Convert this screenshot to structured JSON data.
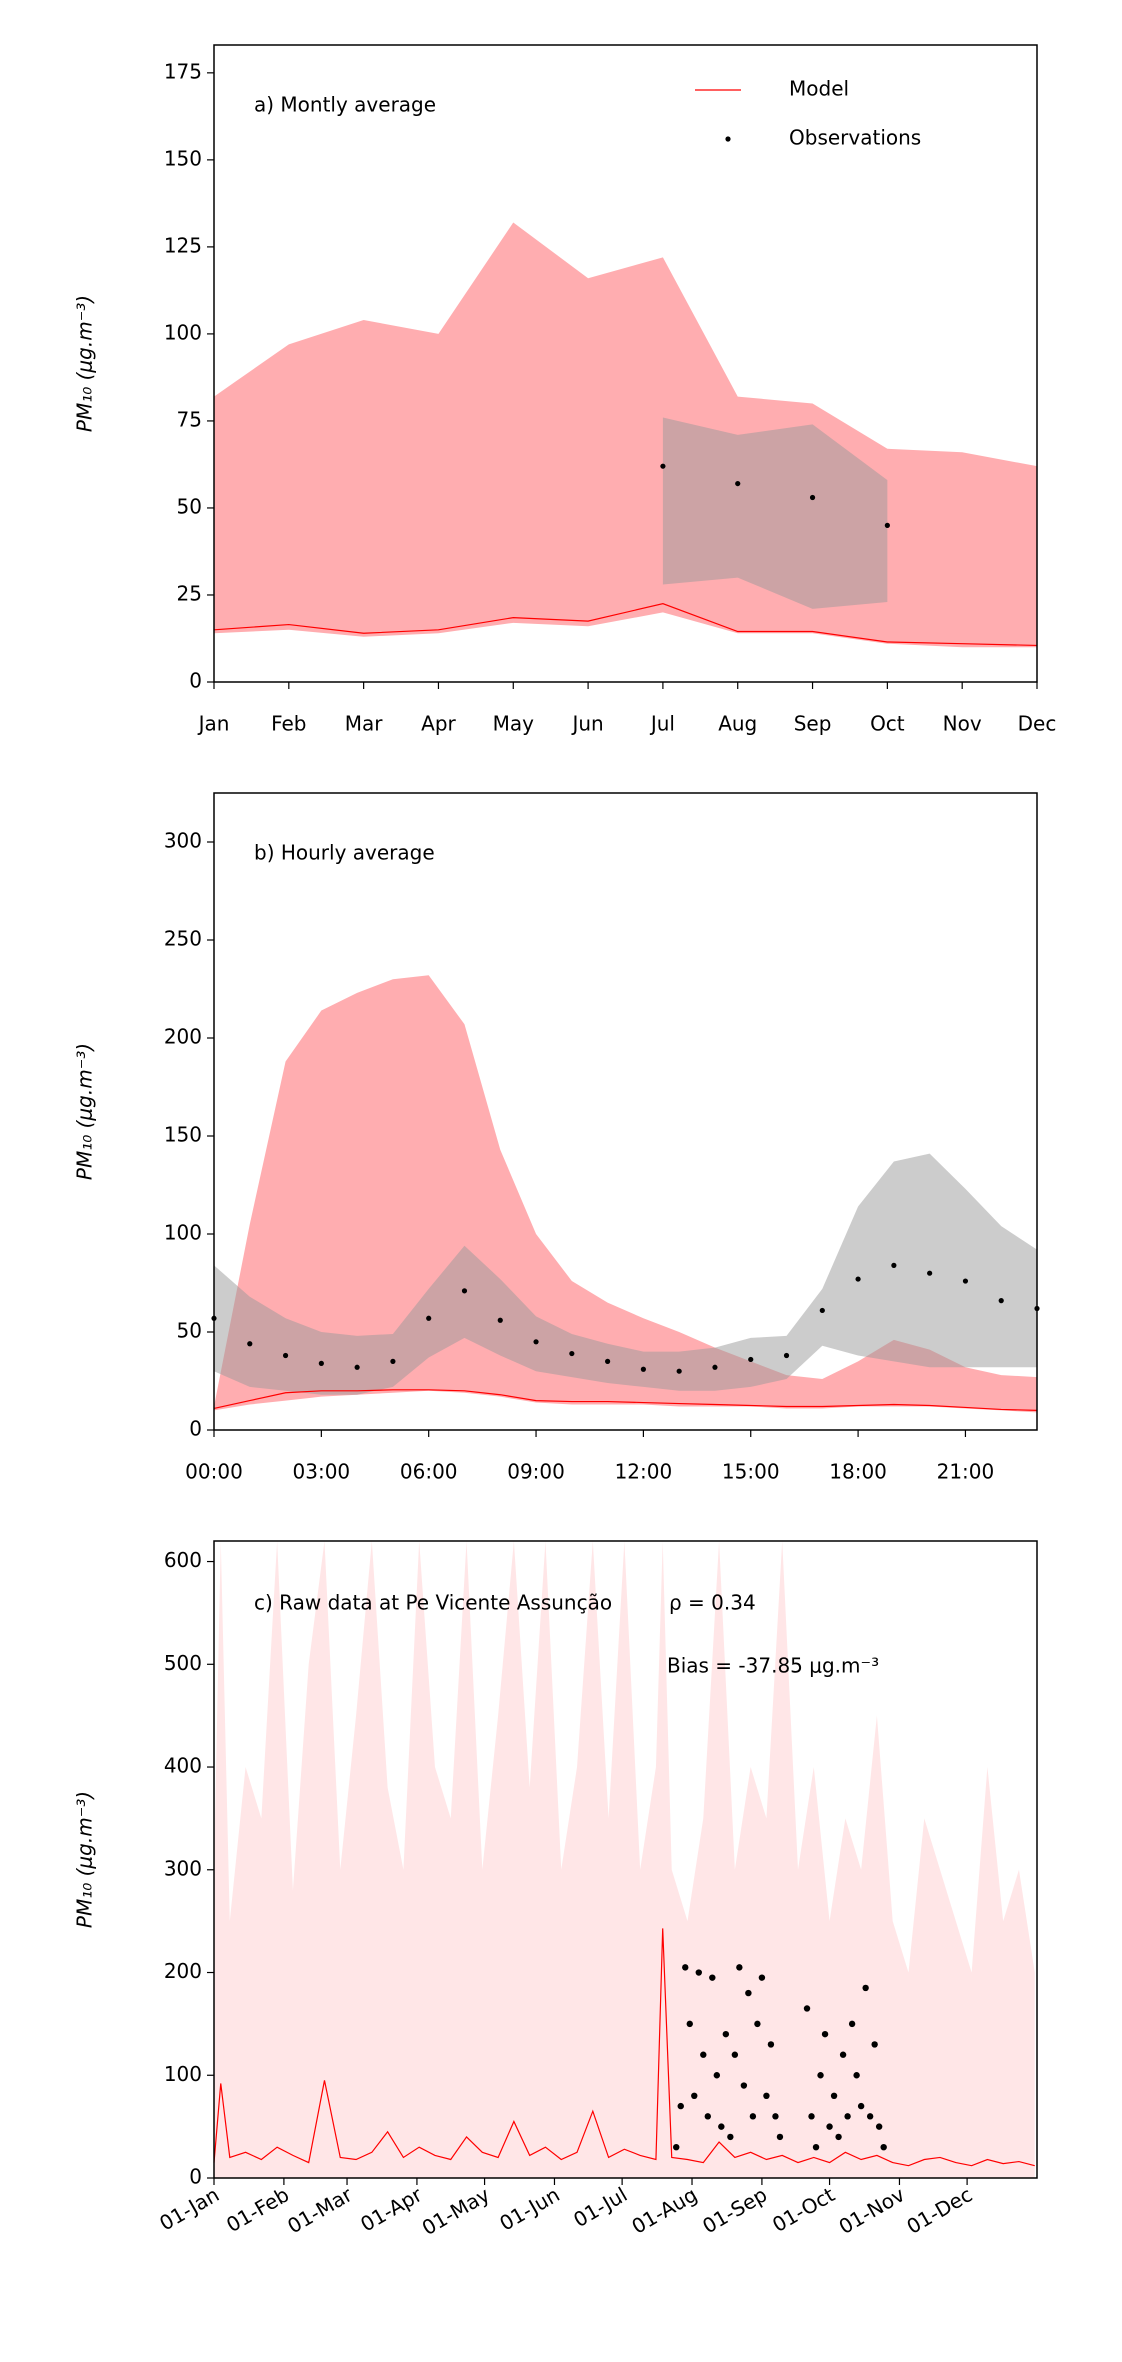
{
  "chart_data": [
    {
      "type": "line",
      "ylabel": "PM₁₀ (μg.m⁻³)",
      "annotations": [
        "a) Montly average"
      ],
      "legend": "upper right",
      "categories": [
        "Jan",
        "Feb",
        "Mar",
        "Apr",
        "May",
        "Jun",
        "Jul",
        "Aug",
        "Sep",
        "Oct",
        "Nov",
        "Dec"
      ],
      "ylim": [
        0,
        183
      ],
      "yticks": [
        0,
        25,
        50,
        75,
        100,
        125,
        150,
        175
      ],
      "bands": [
        {
          "color": "#ff7b80",
          "upper": [
            82,
            97,
            104,
            100,
            132,
            116,
            122,
            82,
            80,
            67,
            66,
            62
          ],
          "lower": [
            14,
            15,
            13,
            14,
            17,
            16,
            20,
            14,
            14,
            11,
            10,
            10
          ]
        },
        {
          "color": "#999999",
          "upper": [
            null,
            null,
            null,
            null,
            null,
            null,
            76,
            71,
            74,
            58,
            null,
            null
          ],
          "lower": [
            null,
            null,
            null,
            null,
            null,
            null,
            28,
            30,
            21,
            23,
            null,
            null
          ]
        }
      ],
      "series": [
        {
          "name": "Model",
          "color": "#ff0000",
          "style": "line",
          "values": [
            15,
            16.5,
            14,
            15,
            18.5,
            17.5,
            22.5,
            14.5,
            14.5,
            11.5,
            11,
            10.5
          ]
        },
        {
          "name": "Observations",
          "color": "#000000",
          "style": "points",
          "values": [
            null,
            null,
            null,
            null,
            null,
            null,
            62,
            57,
            53,
            45,
            null,
            null
          ]
        }
      ]
    },
    {
      "type": "line",
      "ylabel": "PM₁₀ (μg.m⁻³)",
      "annotations": [
        "b) Hourly average"
      ],
      "x": [
        0,
        1,
        2,
        3,
        4,
        5,
        6,
        7,
        8,
        9,
        10,
        11,
        12,
        13,
        14,
        15,
        16,
        17,
        18,
        19,
        20,
        21,
        22,
        23
      ],
      "xlim": [
        0,
        23
      ],
      "xticks": [
        {
          "value": 0,
          "label": "00:00"
        },
        {
          "value": 3,
          "label": "03:00"
        },
        {
          "value": 6,
          "label": "06:00"
        },
        {
          "value": 9,
          "label": "09:00"
        },
        {
          "value": 12,
          "label": "12:00"
        },
        {
          "value": 15,
          "label": "15:00"
        },
        {
          "value": 18,
          "label": "18:00"
        },
        {
          "value": 21,
          "label": "21:00"
        }
      ],
      "ylim": [
        0,
        325
      ],
      "yticks": [
        0,
        50,
        100,
        150,
        200,
        250,
        300
      ],
      "bands": [
        {
          "color": "#ff7b80",
          "upper": [
            12,
            105,
            188,
            214,
            223,
            230,
            232,
            207,
            143,
            100,
            76,
            65,
            57,
            50,
            42,
            35,
            28,
            26,
            35,
            46,
            41,
            32,
            28,
            27
          ],
          "lower": [
            10,
            13,
            15,
            17,
            18,
            19,
            20,
            19,
            17,
            14,
            13,
            13,
            13,
            12,
            12,
            12,
            11,
            11,
            12,
            12,
            12,
            11,
            10,
            9
          ]
        },
        {
          "color": "#999999",
          "upper": [
            84,
            68,
            57,
            50,
            48,
            49,
            72,
            94,
            77,
            58,
            49,
            44,
            40,
            40,
            42,
            47,
            48,
            72,
            114,
            137,
            141,
            123,
            104,
            92
          ],
          "lower": [
            30,
            22,
            20,
            18,
            18,
            22,
            37,
            47,
            38,
            30,
            27,
            24,
            22,
            20,
            20,
            22,
            26,
            43,
            38,
            35,
            32,
            32,
            32,
            32
          ]
        }
      ],
      "series": [
        {
          "name": "Model",
          "color": "#ff0000",
          "style": "line",
          "values": [
            11,
            15,
            19,
            20,
            20,
            20.5,
            20.5,
            20,
            18,
            15,
            14.5,
            14.5,
            14,
            13.5,
            13,
            12.5,
            12,
            12,
            12.5,
            13,
            12.5,
            11.5,
            10.5,
            10
          ]
        },
        {
          "name": "Observations",
          "color": "#000000",
          "style": "points",
          "values": [
            57,
            44,
            38,
            34,
            32,
            35,
            57,
            71,
            56,
            45,
            39,
            35,
            31,
            30,
            32,
            36,
            38,
            61,
            77,
            84,
            80,
            76,
            66,
            62
          ]
        }
      ]
    },
    {
      "type": "line",
      "ylabel": "PM₁₀ (μg.m⁻³)",
      "annotations": [
        "c) Raw data at  Pe Vicente Assunção",
        "ρ = 0.34",
        "Bias = -37.85 μg.m⁻³"
      ],
      "xlim": [
        0,
        365
      ],
      "xticks": [
        {
          "value": 0,
          "label": "01-Jan"
        },
        {
          "value": 31,
          "label": "01-Feb"
        },
        {
          "value": 59,
          "label": "01-Mar"
        },
        {
          "value": 90,
          "label": "01-Apr"
        },
        {
          "value": 120,
          "label": "01-May"
        },
        {
          "value": 151,
          "label": "01-Jun"
        },
        {
          "value": 181,
          "label": "01-Jul"
        },
        {
          "value": 212,
          "label": "01-Aug"
        },
        {
          "value": 243,
          "label": "01-Sep"
        },
        {
          "value": 273,
          "label": "01-Oct"
        },
        {
          "value": 304,
          "label": "01-Nov"
        },
        {
          "value": 334,
          "label": "01-Dec"
        }
      ],
      "ylim": [
        0,
        620
      ],
      "yticks": [
        0,
        100,
        200,
        300,
        400,
        500,
        600
      ],
      "bands": [
        {
          "color": "#ffd6d8",
          "x": [
            0,
            3,
            7,
            14,
            21,
            28,
            35,
            42,
            49,
            56,
            63,
            70,
            77,
            84,
            91,
            98,
            105,
            112,
            119,
            126,
            133,
            140,
            147,
            154,
            161,
            168,
            175,
            182,
            189,
            196,
            199,
            203,
            210,
            217,
            224,
            231,
            238,
            245,
            252,
            259,
            266,
            273,
            280,
            287,
            294,
            301,
            308,
            315,
            322,
            329,
            336,
            343,
            350,
            357,
            364
          ],
          "upper": [
            300,
            620,
            250,
            400,
            350,
            620,
            280,
            500,
            620,
            300,
            450,
            620,
            380,
            300,
            620,
            400,
            350,
            620,
            300,
            450,
            620,
            380,
            620,
            300,
            400,
            620,
            350,
            620,
            300,
            400,
            620,
            300,
            250,
            350,
            620,
            300,
            400,
            350,
            620,
            300,
            400,
            250,
            350,
            300,
            450,
            250,
            200,
            350,
            300,
            250,
            200,
            400,
            250,
            300,
            200
          ]
        }
      ],
      "series": [
        {
          "name": "Model",
          "color": "#ff0000",
          "style": "line",
          "x": [
            0,
            3,
            7,
            14,
            21,
            28,
            35,
            42,
            49,
            56,
            63,
            70,
            77,
            84,
            91,
            98,
            105,
            112,
            119,
            126,
            133,
            140,
            147,
            154,
            161,
            168,
            175,
            182,
            189,
            196,
            199,
            203,
            210,
            217,
            224,
            231,
            238,
            245,
            252,
            259,
            266,
            273,
            280,
            287,
            294,
            301,
            308,
            315,
            322,
            329,
            336,
            343,
            350,
            357,
            364
          ],
          "values": [
            15,
            92,
            20,
            25,
            18,
            30,
            22,
            15,
            95,
            20,
            18,
            25,
            45,
            20,
            30,
            22,
            18,
            40,
            25,
            20,
            55,
            22,
            30,
            18,
            25,
            65,
            20,
            28,
            22,
            18,
            243,
            20,
            18,
            15,
            35,
            20,
            25,
            18,
            22,
            15,
            20,
            15,
            25,
            18,
            22,
            15,
            12,
            18,
            20,
            15,
            12,
            18,
            14,
            16,
            12
          ]
        },
        {
          "name": "Observations",
          "color": "#000000",
          "style": "points",
          "x": [
            205,
            207,
            209,
            211,
            213,
            215,
            217,
            219,
            221,
            223,
            225,
            227,
            229,
            231,
            233,
            235,
            237,
            239,
            241,
            243,
            245,
            247,
            249,
            251,
            263,
            265,
            267,
            269,
            271,
            273,
            275,
            277,
            279,
            281,
            283,
            285,
            287,
            289,
            291,
            293,
            295,
            297
          ],
          "values": [
            30,
            70,
            205,
            150,
            80,
            200,
            120,
            60,
            195,
            100,
            50,
            140,
            40,
            120,
            205,
            90,
            180,
            60,
            150,
            195,
            80,
            130,
            60,
            40,
            165,
            60,
            30,
            100,
            140,
            50,
            80,
            40,
            120,
            60,
            150,
            100,
            70,
            185,
            60,
            130,
            50,
            30
          ]
        }
      ]
    }
  ]
}
